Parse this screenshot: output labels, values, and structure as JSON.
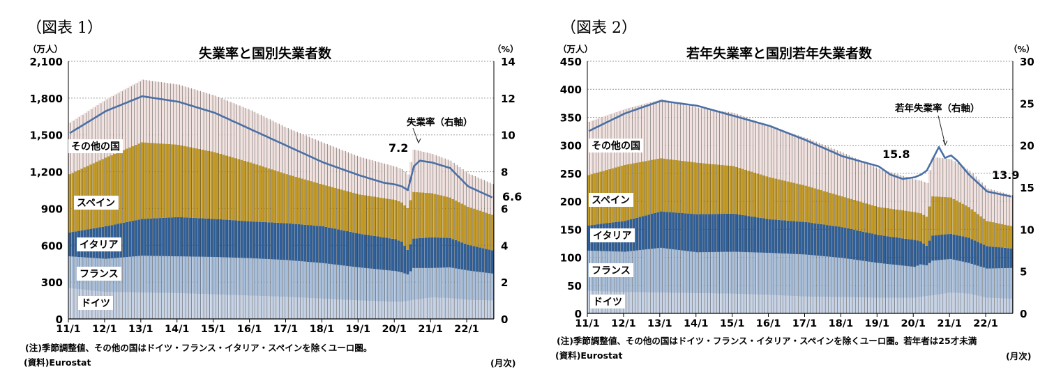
{
  "figures": [
    {
      "label": "（図表 1）",
      "notes": {
        "note": "(注)季節調整値、その他の国はドイツ・フランス・イタリア・スペインを除くユーロ圏。",
        "source": "(資料)Eurostat",
        "freq": "(月次)"
      }
    },
    {
      "label": "（図表 2）",
      "notes": {
        "note": "(注)季節調整値、その他の国はドイツ・フランス・イタリア・スペインを除くユーロ圏。若年者は25才未満",
        "source": "(資料)Eurostat",
        "freq": "(月次)"
      }
    }
  ],
  "colors": {
    "germany": "#c6d3e6",
    "france": "#a8bfdc",
    "italy": "#2e5f99",
    "spain": "#c49a26",
    "other": "#f2e2df",
    "rate_line": "#4a6fa5",
    "separator": "#3a3a3a"
  },
  "chart_data": [
    {
      "type": "bar",
      "stacked": true,
      "title": "失業率と国別失業者数",
      "y_unit_left": "（万人）",
      "y_unit_right": "（%）",
      "ylim": [
        0,
        2100
      ],
      "yticks": [
        "0",
        "300",
        "600",
        "900",
        "1,200",
        "1,500",
        "1,800",
        "2,100"
      ],
      "ylim_right": [
        0,
        14
      ],
      "yticks_right": [
        "0",
        "2",
        "4",
        "6",
        "8",
        "10",
        "12",
        "14"
      ],
      "x_ticks": [
        "11/1",
        "12/1",
        "13/1",
        "14/1",
        "15/1",
        "16/1",
        "17/1",
        "18/1",
        "19/1",
        "20/1",
        "21/1",
        "22/1"
      ],
      "x_start": "2011/1",
      "months": 141,
      "series_labels": [
        "ドイツ",
        "フランス",
        "イタリア",
        "スペイン",
        "その他の国"
      ],
      "series": [
        {
          "key": "germany",
          "anchors": [
            [
              0,
              250
            ],
            [
              12,
              220
            ],
            [
              24,
              215
            ],
            [
              36,
              210
            ],
            [
              48,
              200
            ],
            [
              60,
              190
            ],
            [
              72,
              180
            ],
            [
              84,
              165
            ],
            [
              96,
              150
            ],
            [
              108,
              140
            ],
            [
              110,
              140
            ],
            [
              114,
              155
            ],
            [
              120,
              175
            ],
            [
              126,
              170
            ],
            [
              132,
              155
            ],
            [
              140,
              150
            ]
          ]
        },
        {
          "key": "france",
          "anchors": [
            [
              0,
              260
            ],
            [
              12,
              270
            ],
            [
              24,
              300
            ],
            [
              36,
              300
            ],
            [
              48,
              305
            ],
            [
              60,
              305
            ],
            [
              72,
              300
            ],
            [
              84,
              290
            ],
            [
              96,
              270
            ],
            [
              108,
              250
            ],
            [
              110,
              240
            ],
            [
              112,
              215
            ],
            [
              114,
              260
            ],
            [
              120,
              240
            ],
            [
              126,
              250
            ],
            [
              132,
              240
            ],
            [
              140,
              220
            ]
          ]
        },
        {
          "key": "italy",
          "anchors": [
            [
              0,
              195
            ],
            [
              12,
              265
            ],
            [
              24,
              300
            ],
            [
              36,
              320
            ],
            [
              48,
              310
            ],
            [
              60,
              300
            ],
            [
              72,
              300
            ],
            [
              84,
              300
            ],
            [
              96,
              275
            ],
            [
              108,
              260
            ],
            [
              110,
              250
            ],
            [
              112,
              200
            ],
            [
              114,
              240
            ],
            [
              120,
              250
            ],
            [
              126,
              240
            ],
            [
              132,
              210
            ],
            [
              140,
              190
            ]
          ]
        },
        {
          "key": "spain",
          "anchors": [
            [
              0,
              475
            ],
            [
              12,
              560
            ],
            [
              24,
              625
            ],
            [
              36,
              590
            ],
            [
              48,
              545
            ],
            [
              60,
              480
            ],
            [
              72,
              400
            ],
            [
              84,
              340
            ],
            [
              96,
              320
            ],
            [
              108,
              320
            ],
            [
              110,
              320
            ],
            [
              112,
              340
            ],
            [
              114,
              380
            ],
            [
              120,
              360
            ],
            [
              126,
              330
            ],
            [
              132,
              310
            ],
            [
              140,
              290
            ]
          ]
        },
        {
          "key": "other",
          "anchors": [
            [
              0,
              420
            ],
            [
              12,
              475
            ],
            [
              24,
              510
            ],
            [
              36,
              490
            ],
            [
              48,
              460
            ],
            [
              60,
              425
            ],
            [
              72,
              375
            ],
            [
              84,
              340
            ],
            [
              96,
              305
            ],
            [
              108,
              270
            ],
            [
              110,
              270
            ],
            [
              112,
              275
            ],
            [
              114,
              345
            ],
            [
              120,
              320
            ],
            [
              126,
              300
            ],
            [
              132,
              270
            ],
            [
              140,
              250
            ]
          ]
        }
      ],
      "rate": {
        "name": "失業率（右軸）",
        "anchors": [
          [
            0,
            10.1
          ],
          [
            12,
            11.3
          ],
          [
            24,
            12.1
          ],
          [
            36,
            11.8
          ],
          [
            48,
            11.2
          ],
          [
            60,
            10.3
          ],
          [
            72,
            9.4
          ],
          [
            84,
            8.5
          ],
          [
            96,
            7.8
          ],
          [
            104,
            7.4
          ],
          [
            108,
            7.3
          ],
          [
            110,
            7.2
          ],
          [
            112,
            7.0
          ],
          [
            114,
            8.3
          ],
          [
            116,
            8.6
          ],
          [
            120,
            8.5
          ],
          [
            126,
            8.2
          ],
          [
            132,
            7.2
          ],
          [
            140,
            6.6
          ]
        ]
      },
      "annotations": [
        {
          "text": "7.2",
          "x_month": 110
        },
        {
          "text": "6.6",
          "x_month": 140
        },
        {
          "text": "失業率（右軸）",
          "x_month": 118
        }
      ]
    },
    {
      "type": "bar",
      "stacked": true,
      "title": "若年失業率と国別若年失業者数",
      "y_unit_left": "（万人）",
      "y_unit_right": "（%）",
      "ylim": [
        0,
        450
      ],
      "yticks": [
        "0",
        "50",
        "100",
        "150",
        "200",
        "250",
        "300",
        "350",
        "400",
        "450"
      ],
      "ylim_right": [
        0,
        30
      ],
      "yticks_right": [
        "0",
        "5",
        "10",
        "15",
        "20",
        "25",
        "30"
      ],
      "x_ticks": [
        "11/1",
        "12/1",
        "13/1",
        "14/1",
        "15/1",
        "16/1",
        "17/1",
        "18/1",
        "19/1",
        "20/1",
        "21/1",
        "22/1"
      ],
      "x_start": "2011/1",
      "months": 141,
      "series_labels": [
        "ドイツ",
        "フランス",
        "イタリア",
        "スペイン",
        "その他の国"
      ],
      "series": [
        {
          "key": "germany",
          "anchors": [
            [
              0,
              40
            ],
            [
              12,
              38
            ],
            [
              24,
              37
            ],
            [
              36,
              36
            ],
            [
              48,
              35
            ],
            [
              60,
              33
            ],
            [
              72,
              30
            ],
            [
              84,
              29
            ],
            [
              96,
              28
            ],
            [
              108,
              28
            ],
            [
              114,
              32
            ],
            [
              120,
              37
            ],
            [
              126,
              35
            ],
            [
              132,
              28
            ],
            [
              140,
              26
            ]
          ]
        },
        {
          "key": "france",
          "anchors": [
            [
              0,
              72
            ],
            [
              12,
              72
            ],
            [
              24,
              80
            ],
            [
              36,
              73
            ],
            [
              48,
              75
            ],
            [
              60,
              75
            ],
            [
              72,
              75
            ],
            [
              84,
              70
            ],
            [
              96,
              62
            ],
            [
              108,
              55
            ],
            [
              110,
              58
            ],
            [
              112,
              55
            ],
            [
              114,
              62
            ],
            [
              120,
              60
            ],
            [
              126,
              55
            ],
            [
              132,
              52
            ],
            [
              140,
              55
            ]
          ]
        },
        {
          "key": "italy",
          "anchors": [
            [
              0,
              45
            ],
            [
              12,
              55
            ],
            [
              24,
              65
            ],
            [
              36,
              68
            ],
            [
              48,
              68
            ],
            [
              60,
              60
            ],
            [
              72,
              58
            ],
            [
              84,
              55
            ],
            [
              96,
              50
            ],
            [
              108,
              48
            ],
            [
              112,
              35
            ],
            [
              114,
              45
            ],
            [
              120,
              45
            ],
            [
              126,
              45
            ],
            [
              132,
              40
            ],
            [
              140,
              35
            ]
          ]
        },
        {
          "key": "spain",
          "anchors": [
            [
              0,
              90
            ],
            [
              12,
              100
            ],
            [
              24,
              95
            ],
            [
              36,
              92
            ],
            [
              48,
              85
            ],
            [
              60,
              75
            ],
            [
              72,
              65
            ],
            [
              84,
              55
            ],
            [
              96,
              50
            ],
            [
              108,
              50
            ],
            [
              110,
              50
            ],
            [
              112,
              52
            ],
            [
              114,
              70
            ],
            [
              120,
              65
            ],
            [
              126,
              55
            ],
            [
              132,
              45
            ],
            [
              140,
              40
            ]
          ]
        },
        {
          "key": "other",
          "anchors": [
            [
              0,
              95
            ],
            [
              12,
              100
            ],
            [
              24,
              105
            ],
            [
              36,
              98
            ],
            [
              48,
              95
            ],
            [
              60,
              90
            ],
            [
              72,
              85
            ],
            [
              84,
              78
            ],
            [
              96,
              68
            ],
            [
              108,
              58
            ],
            [
              110,
              58
            ],
            [
              112,
              60
            ],
            [
              114,
              70
            ],
            [
              120,
              68
            ],
            [
              126,
              65
            ],
            [
              132,
              58
            ],
            [
              140,
              55
            ]
          ]
        }
      ],
      "rate": {
        "name": "若年失業率（右軸）",
        "anchors": [
          [
            0,
            21.7
          ],
          [
            12,
            23.8
          ],
          [
            24,
            25.3
          ],
          [
            36,
            24.7
          ],
          [
            48,
            23.5
          ],
          [
            60,
            22.3
          ],
          [
            72,
            20.6
          ],
          [
            84,
            18.7
          ],
          [
            96,
            17.5
          ],
          [
            100,
            16.5
          ],
          [
            104,
            16.0
          ],
          [
            108,
            16.2
          ],
          [
            110,
            16.5
          ],
          [
            112,
            17.0
          ],
          [
            116,
            19.8
          ],
          [
            118,
            18.5
          ],
          [
            120,
            18.8
          ],
          [
            122,
            18.2
          ],
          [
            126,
            16.5
          ],
          [
            132,
            14.5
          ],
          [
            140,
            13.9
          ]
        ]
      },
      "annotations": [
        {
          "text": "15.8",
          "x_month": 104
        },
        {
          "text": "13.9",
          "x_month": 140
        },
        {
          "text": "若年失業率（右軸）",
          "x_month": 118
        }
      ]
    }
  ]
}
